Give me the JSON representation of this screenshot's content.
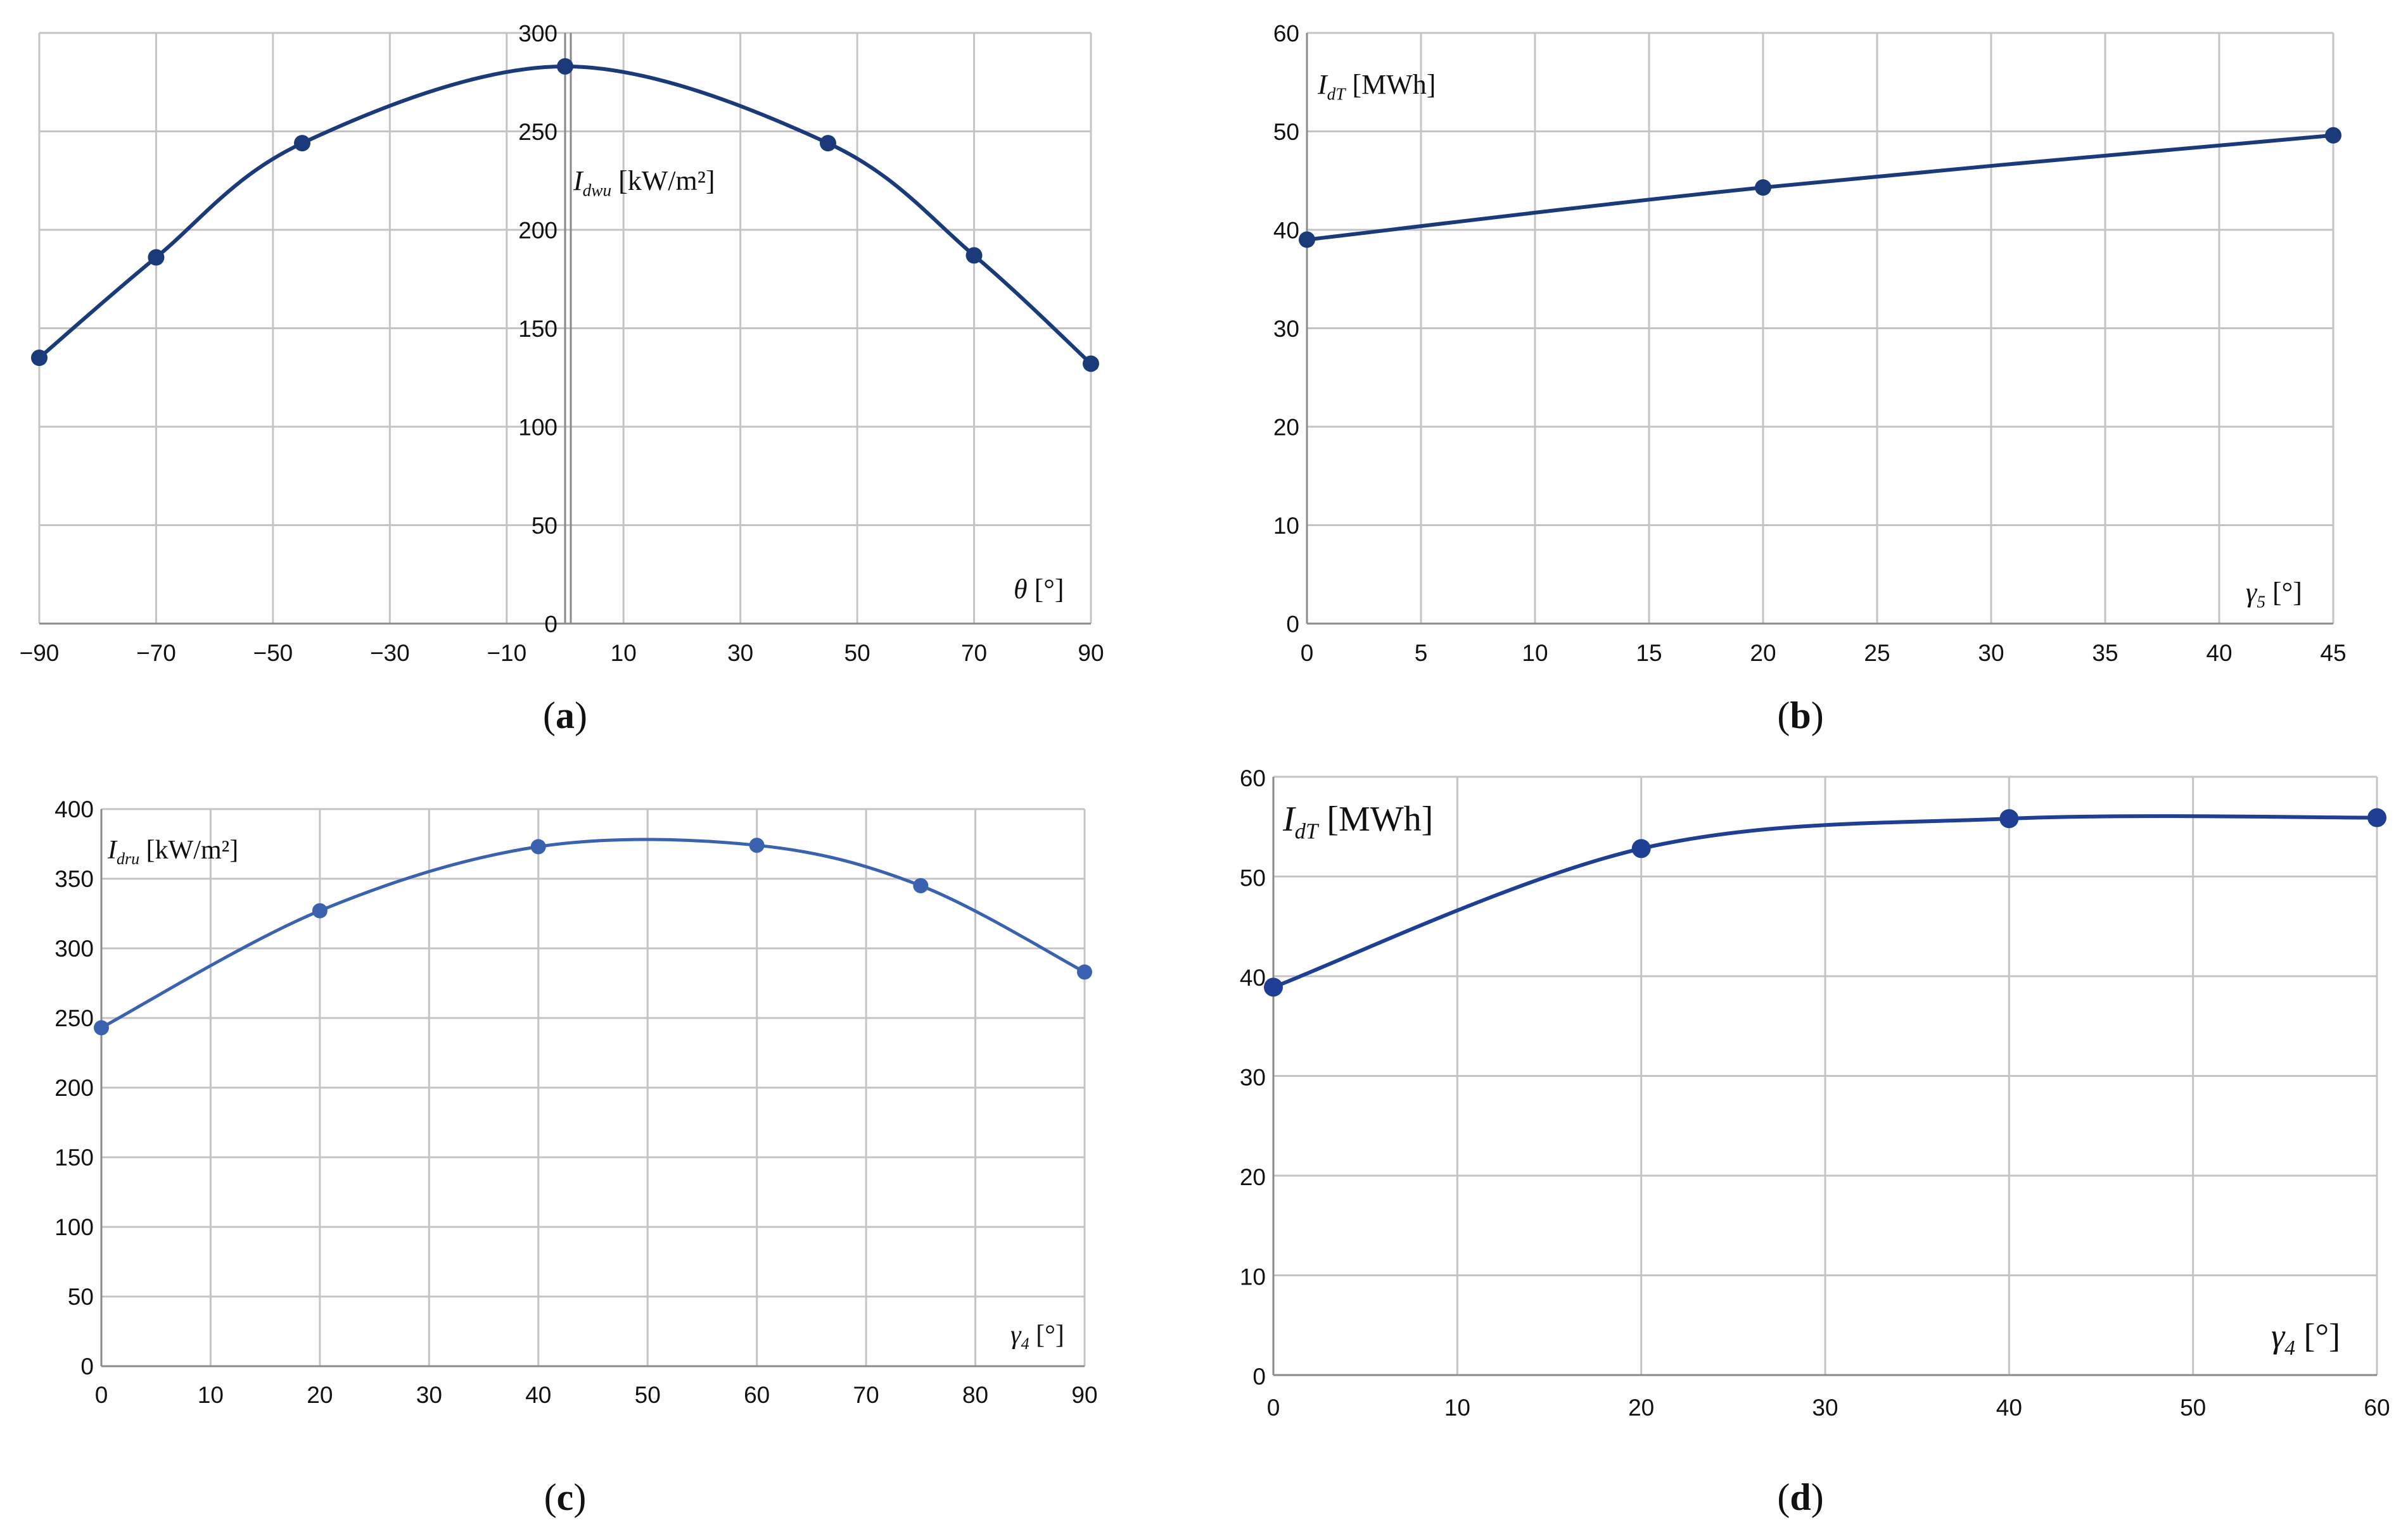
{
  "chart_data": [
    {
      "id": "a",
      "type": "line",
      "panel_label_pre": "(",
      "panel_label_letter": "a",
      "panel_label_post": ")",
      "ylabel_main": "I",
      "ylabel_sub": "dwu",
      "ylabel_unit": " [kW/m²]",
      "xlabel_main": "θ",
      "xlabel_sub": "",
      "xlabel_unit": " [°]",
      "xlim": [
        -90,
        90
      ],
      "ylim": [
        0,
        300
      ],
      "x_ticks": [
        -90,
        -70,
        -50,
        -30,
        -10,
        10,
        30,
        50,
        70,
        90
      ],
      "x_tick_labels": [
        "−90",
        "−70",
        "−50",
        "−30",
        "−10",
        "10",
        "30",
        "50",
        "70",
        "90"
      ],
      "y_ticks": [
        0,
        50,
        100,
        150,
        200,
        250,
        300
      ],
      "y_tick_labels": [
        "0",
        "50",
        "100",
        "150",
        "200",
        "250",
        "300"
      ],
      "y_axis_at_x": 0,
      "series": [
        {
          "name": "Idwu",
          "x": [
            -90,
            -70,
            -45,
            0,
            45,
            70,
            90
          ],
          "y": [
            135,
            186,
            244,
            283,
            244,
            187,
            132
          ]
        }
      ],
      "color": "#1a3a7a"
    },
    {
      "id": "b",
      "type": "line",
      "panel_label_pre": "(",
      "panel_label_letter": "b",
      "panel_label_post": ")",
      "ylabel_main": "I",
      "ylabel_sub": "dT",
      "ylabel_unit": " [MWh]",
      "xlabel_main": "γ",
      "xlabel_sub": "5",
      "xlabel_unit": " [°]",
      "xlim": [
        0,
        45
      ],
      "ylim": [
        0,
        60
      ],
      "x_ticks": [
        0,
        5,
        10,
        15,
        20,
        25,
        30,
        35,
        40,
        45
      ],
      "x_tick_labels": [
        "0",
        "5",
        "10",
        "15",
        "20",
        "25",
        "30",
        "35",
        "40",
        "45"
      ],
      "y_ticks": [
        0,
        10,
        20,
        30,
        40,
        50,
        60
      ],
      "y_tick_labels": [
        "0",
        "10",
        "20",
        "30",
        "40",
        "50",
        "60"
      ],
      "series": [
        {
          "name": "IdT",
          "x": [
            0,
            20,
            45
          ],
          "y": [
            39,
            44.3,
            49.6
          ]
        }
      ],
      "color": "#1a3a7a"
    },
    {
      "id": "c",
      "type": "line",
      "panel_label_pre": "(",
      "panel_label_letter": "c",
      "panel_label_post": ")",
      "ylabel_main": "I",
      "ylabel_sub": "dru",
      "ylabel_unit": " [kW/m²]",
      "xlabel_main": "γ",
      "xlabel_sub": "4",
      "xlabel_unit": " [°]",
      "xlim": [
        0,
        90
      ],
      "ylim": [
        0,
        400
      ],
      "x_ticks": [
        0,
        10,
        20,
        30,
        40,
        50,
        60,
        70,
        80,
        90
      ],
      "x_tick_labels": [
        "0",
        "10",
        "20",
        "30",
        "40",
        "50",
        "60",
        "70",
        "80",
        "90"
      ],
      "y_ticks": [
        0,
        50,
        100,
        150,
        200,
        250,
        300,
        350,
        400
      ],
      "y_tick_labels": [
        "0",
        "50",
        "100",
        "150",
        "200",
        "250",
        "300",
        "350",
        "400"
      ],
      "series": [
        {
          "name": "Idru",
          "x": [
            0,
            20,
            40,
            60,
            75,
            90
          ],
          "y": [
            243,
            327,
            373,
            374,
            345,
            283
          ]
        }
      ],
      "color": "#3a62ae"
    },
    {
      "id": "d",
      "type": "line",
      "panel_label_pre": "(",
      "panel_label_letter": "d",
      "panel_label_post": ")",
      "ylabel_main": "I",
      "ylabel_sub": "dT",
      "ylabel_unit": " [MWh]",
      "xlabel_main": "γ",
      "xlabel_sub": "4",
      "xlabel_unit": " [°]",
      "xlim": [
        0,
        60
      ],
      "ylim": [
        0,
        60
      ],
      "x_ticks": [
        0,
        10,
        20,
        30,
        40,
        50,
        60
      ],
      "x_tick_labels": [
        "0",
        "10",
        "20",
        "30",
        "40",
        "50",
        "60"
      ],
      "y_ticks": [
        0,
        10,
        20,
        30,
        40,
        50,
        60
      ],
      "y_tick_labels": [
        "0",
        "10",
        "20",
        "30",
        "40",
        "50",
        "60"
      ],
      "series": [
        {
          "name": "IdT",
          "x": [
            0,
            20,
            40,
            60
          ],
          "y": [
            38.9,
            52.8,
            55.8,
            55.9
          ]
        }
      ],
      "color": "#1f3f94"
    }
  ]
}
